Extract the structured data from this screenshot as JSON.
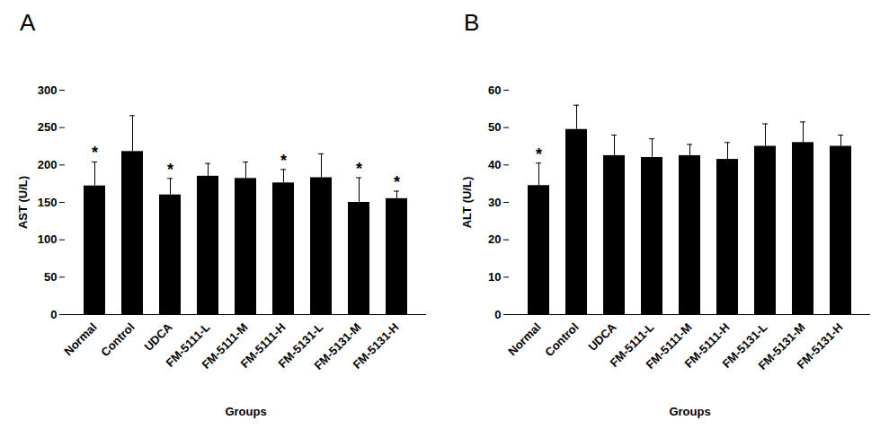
{
  "chart_data": [
    {
      "type": "bar",
      "title": "A",
      "x_label": "Groups",
      "y_label": "AST (U/L)",
      "categories": [
        "Normal",
        "Control",
        "UDCA",
        "FM-5111-L",
        "FM-5111-M",
        "FM-5111-H",
        "FM-5131-L",
        "FM-5131-M",
        "FM-5131-H"
      ],
      "values": [
        172,
        218,
        160,
        185,
        182,
        176,
        183,
        150,
        155
      ],
      "errors": [
        32,
        48,
        22,
        17,
        22,
        18,
        32,
        33,
        10
      ],
      "significance": [
        "*",
        null,
        "*",
        null,
        null,
        "*",
        null,
        "*",
        "*"
      ],
      "color": "#000000",
      "ylim": [
        0,
        300
      ],
      "yticks": [
        0,
        50,
        100,
        150,
        200,
        250,
        300
      ],
      "grid": false
    },
    {
      "type": "bar",
      "title": "B",
      "x_label": "Groups",
      "y_label": "ALT (U/L)",
      "categories": [
        "Normal",
        "Control",
        "UDCA",
        "FM-5111-L",
        "FM-5111-M",
        "FM-5111-H",
        "FM-5131-L",
        "FM-5131-M",
        "FM-5131-H"
      ],
      "values": [
        34.5,
        49.5,
        42.5,
        42,
        42.5,
        41.5,
        45,
        46,
        45
      ],
      "errors": [
        6,
        6.5,
        5.5,
        5,
        3,
        4.5,
        6,
        5.5,
        3
      ],
      "significance": [
        "*",
        null,
        null,
        null,
        null,
        null,
        null,
        null,
        null
      ],
      "color": "#000000",
      "ylim": [
        0,
        60
      ],
      "yticks": [
        0,
        10,
        20,
        30,
        40,
        50,
        60
      ],
      "grid": false
    }
  ]
}
